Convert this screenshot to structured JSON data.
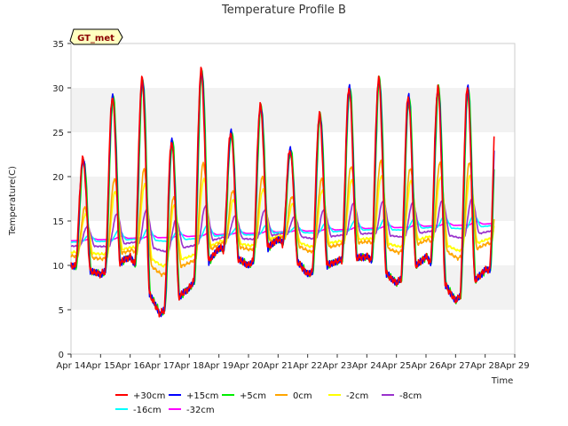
{
  "chart_data": {
    "type": "line",
    "title": "Temperature Profile B",
    "xlabel": "Time",
    "ylabel": "Temperature(C)",
    "badge": "GT_met",
    "xlim": [
      0,
      15
    ],
    "ylim": [
      0,
      35
    ],
    "yticks": [
      0,
      5,
      10,
      15,
      20,
      25,
      30,
      35
    ],
    "xticks": [
      {
        "v": 0,
        "label": "Apr 14"
      },
      {
        "v": 1,
        "label": "Apr 15"
      },
      {
        "v": 2,
        "label": "Apr 16"
      },
      {
        "v": 3,
        "label": "Apr 17"
      },
      {
        "v": 4,
        "label": "Apr 18"
      },
      {
        "v": 5,
        "label": "Apr 19"
      },
      {
        "v": 6,
        "label": "Apr 20"
      },
      {
        "v": 7,
        "label": "Apr 21"
      },
      {
        "v": 8,
        "label": "Apr 22"
      },
      {
        "v": 9,
        "label": "Apr 23"
      },
      {
        "v": 10,
        "label": "Apr 24"
      },
      {
        "v": 11,
        "label": "Apr 25"
      },
      {
        "v": 12,
        "label": "Apr 26"
      },
      {
        "v": 13,
        "label": "Apr 27"
      },
      {
        "v": 14,
        "label": "Apr 28"
      },
      {
        "v": 15,
        "label": "Apr 29"
      }
    ],
    "grid_bands": true,
    "legend_placement": "bottom",
    "daily": {
      "max": [
        22,
        29,
        31,
        24,
        32,
        25,
        28,
        23,
        27,
        30,
        31,
        29,
        30,
        30
      ],
      "min": [
        10,
        9,
        11,
        4.5,
        7.5,
        12,
        10,
        13,
        9,
        10.5,
        11,
        8,
        11,
        6,
        9.5
      ],
      "days": 14.3
    },
    "series": [
      {
        "name": "+30cm",
        "color": "#ff0000",
        "amp": 1.0,
        "damp": 1.0,
        "lag": 0.0
      },
      {
        "name": "+15cm",
        "color": "#0000ff",
        "amp": 0.97,
        "damp": 1.0,
        "lag": 0.01
      },
      {
        "name": "+5cm",
        "color": "#00ee00",
        "amp": 0.93,
        "damp": 1.0,
        "lag": 0.03
      },
      {
        "name": "0cm",
        "color": "#ffa500",
        "amp": 0.45,
        "damp": 0.8,
        "lag": 0.07
      },
      {
        "name": "-2cm",
        "color": "#ffff00",
        "amp": 0.35,
        "damp": 0.75,
        "lag": 0.09
      },
      {
        "name": "-8cm",
        "color": "#9932cc",
        "amp": 0.18,
        "damp": 0.5,
        "lag": 0.15
      },
      {
        "name": "-16cm",
        "color": "#00ffff",
        "amp": 0.06,
        "damp": 0.25,
        "lag": 0.22
      },
      {
        "name": "-32cm",
        "color": "#ff00ff",
        "amp": 0.015,
        "damp": 0.1,
        "lag": 0.3
      }
    ]
  }
}
